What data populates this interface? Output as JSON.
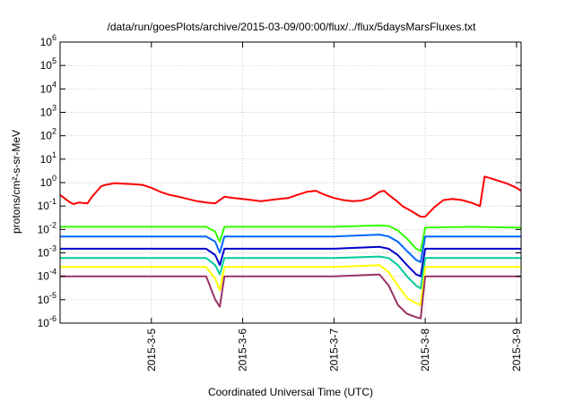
{
  "chart_data": {
    "type": "line",
    "title": "/data/run/goesPlots/archive/2015-03-09/00:00/flux/../flux/5daysMarsFluxes.txt",
    "xlabel": "Coordinated Universal Time (UTC)",
    "ylabel": "protons/cm²-s-sr-MeV",
    "yscale": "log",
    "ylim": [
      1e-06,
      1000000.0
    ],
    "xlim": [
      4.0,
      9.05
    ],
    "x_tick_values": [
      5,
      6,
      7,
      8,
      9
    ],
    "x_tick_labels": [
      "2015-3-5",
      "2015-3-6",
      "2015-3-7",
      "2015-3-8",
      "2015-3-9"
    ],
    "y_tick_exponents": [
      -6,
      -5,
      -4,
      -3,
      -2,
      -1,
      0,
      1,
      2,
      3,
      4,
      5,
      6
    ],
    "grid": true,
    "series": [
      {
        "color": "#ff0000",
        "x": [
          4.0,
          4.1,
          4.15,
          4.2,
          4.3,
          4.35,
          4.45,
          4.5,
          4.6,
          4.7,
          4.8,
          4.9,
          5.0,
          5.1,
          5.2,
          5.3,
          5.4,
          5.5,
          5.6,
          5.7,
          5.8,
          5.9,
          6.0,
          6.1,
          6.2,
          6.3,
          6.4,
          6.5,
          6.6,
          6.7,
          6.8,
          6.9,
          7.0,
          7.1,
          7.2,
          7.3,
          7.4,
          7.5,
          7.55,
          7.6,
          7.7,
          7.75,
          7.85,
          7.95,
          8.0,
          8.1,
          8.2,
          8.3,
          8.4,
          8.5,
          8.6,
          8.65,
          8.7,
          8.8,
          8.9,
          9.0,
          9.05
        ],
        "y": [
          0.3,
          0.15,
          0.12,
          0.14,
          0.13,
          0.25,
          0.7,
          0.8,
          0.95,
          0.9,
          0.85,
          0.8,
          0.6,
          0.4,
          0.3,
          0.25,
          0.2,
          0.16,
          0.14,
          0.13,
          0.25,
          0.22,
          0.2,
          0.18,
          0.16,
          0.18,
          0.2,
          0.22,
          0.3,
          0.4,
          0.45,
          0.3,
          0.22,
          0.18,
          0.16,
          0.17,
          0.22,
          0.4,
          0.45,
          0.3,
          0.15,
          0.1,
          0.06,
          0.035,
          0.035,
          0.09,
          0.18,
          0.2,
          0.18,
          0.14,
          0.1,
          1.8,
          1.6,
          1.2,
          0.9,
          0.6,
          0.45
        ]
      },
      {
        "color": "#33ff00",
        "x": [
          4.0,
          4.5,
          5.0,
          5.5,
          5.6,
          5.7,
          5.75,
          5.8,
          6.0,
          6.5,
          7.0,
          7.5,
          7.6,
          7.7,
          7.8,
          7.9,
          7.95,
          8.0,
          8.5,
          9.0,
          9.05
        ],
        "y": [
          0.013,
          0.013,
          0.013,
          0.013,
          0.013,
          0.008,
          0.003,
          0.013,
          0.013,
          0.013,
          0.013,
          0.015,
          0.014,
          0.009,
          0.004,
          0.0015,
          0.0012,
          0.012,
          0.013,
          0.012,
          0.012
        ]
      },
      {
        "color": "#0066ff",
        "x": [
          4.0,
          4.5,
          5.0,
          5.5,
          5.6,
          5.7,
          5.75,
          5.8,
          6.0,
          6.5,
          7.0,
          7.5,
          7.6,
          7.7,
          7.8,
          7.9,
          7.95,
          8.0,
          8.5,
          9.0,
          9.05
        ],
        "y": [
          0.005,
          0.005,
          0.005,
          0.005,
          0.005,
          0.003,
          0.001,
          0.005,
          0.005,
          0.005,
          0.005,
          0.006,
          0.005,
          0.003,
          0.0012,
          0.0005,
          0.0004,
          0.005,
          0.005,
          0.005,
          0.005
        ]
      },
      {
        "color": "#0000cc",
        "x": [
          4.0,
          4.5,
          5.0,
          5.5,
          5.6,
          5.7,
          5.75,
          5.8,
          6.0,
          6.5,
          7.0,
          7.5,
          7.6,
          7.7,
          7.8,
          7.9,
          7.95,
          8.0,
          8.5,
          9.0,
          9.05
        ],
        "y": [
          0.0015,
          0.0015,
          0.0015,
          0.0015,
          0.0015,
          0.0008,
          0.0003,
          0.0015,
          0.0015,
          0.0015,
          0.0015,
          0.0018,
          0.0015,
          0.0008,
          0.0003,
          0.00012,
          0.0001,
          0.0015,
          0.0015,
          0.0015,
          0.0015
        ]
      },
      {
        "color": "#00cc99",
        "x": [
          4.0,
          4.5,
          5.0,
          5.5,
          5.6,
          5.7,
          5.75,
          5.8,
          6.0,
          6.5,
          7.0,
          7.5,
          7.6,
          7.7,
          7.8,
          7.9,
          7.95,
          8.0,
          8.5,
          9.0,
          9.05
        ],
        "y": [
          0.0006,
          0.0006,
          0.0006,
          0.0006,
          0.0006,
          0.0003,
          0.00012,
          0.0006,
          0.0006,
          0.0006,
          0.0006,
          0.0007,
          0.0006,
          0.0003,
          0.0001,
          4e-05,
          3e-05,
          0.0006,
          0.0006,
          0.0006,
          0.0006
        ]
      },
      {
        "color": "#ffff00",
        "x": [
          4.0,
          4.5,
          5.0,
          5.5,
          5.6,
          5.7,
          5.75,
          5.8,
          6.0,
          6.5,
          7.0,
          7.5,
          7.6,
          7.7,
          7.8,
          7.9,
          7.95,
          8.0,
          8.5,
          9.0,
          9.05
        ],
        "y": [
          0.00025,
          0.00025,
          0.00025,
          0.00025,
          0.00025,
          8e-05,
          2.5e-05,
          0.00025,
          0.00025,
          0.00025,
          0.00025,
          0.0003,
          0.00015,
          4e-05,
          1.2e-05,
          7e-06,
          6e-06,
          0.00025,
          0.00025,
          0.00025,
          0.00025
        ]
      },
      {
        "color": "#993366",
        "x": [
          4.0,
          4.5,
          5.0,
          5.5,
          5.6,
          5.7,
          5.75,
          5.8,
          6.0,
          6.5,
          7.0,
          7.5,
          7.6,
          7.7,
          7.8,
          7.9,
          7.95,
          8.0,
          8.5,
          9.0,
          9.05
        ],
        "y": [
          0.0001,
          0.0001,
          0.0001,
          0.0001,
          0.0001,
          1e-05,
          5e-06,
          0.0001,
          0.0001,
          0.0001,
          0.0001,
          0.00012,
          4e-05,
          6e-06,
          2.5e-06,
          1.8e-06,
          1.6e-06,
          0.0001,
          0.0001,
          0.0001,
          0.0001
        ]
      }
    ]
  }
}
